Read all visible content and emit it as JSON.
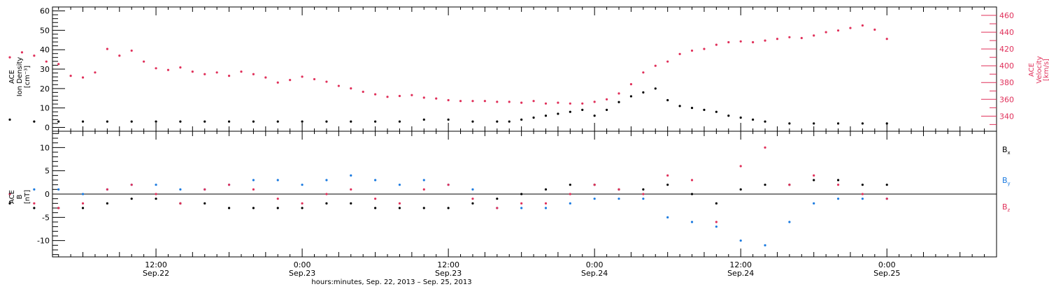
{
  "chart_data": [
    {
      "type": "scatter",
      "panel": "top",
      "y_label_lines": [
        "ACE",
        "Ion Density",
        "[cm⁻³]"
      ],
      "y_ticks": [
        0,
        10,
        20,
        30,
        40,
        50,
        60
      ],
      "ylim": [
        -2,
        62
      ],
      "y2_label_lines": [
        "ACE",
        "Velocity",
        "[km/s]"
      ],
      "y2_ticks": [
        340,
        360,
        380,
        400,
        420,
        440,
        460
      ],
      "y2lim": [
        322,
        470
      ],
      "grid": false,
      "series": [
        {
          "axis": "left",
          "color": "#000000",
          "x": [
            0,
            2,
            4,
            6,
            8,
            10,
            12,
            14,
            16,
            18,
            20,
            22,
            24,
            26,
            28,
            30,
            32,
            34,
            36,
            38,
            40,
            41,
            42,
            43,
            44,
            45,
            46,
            47,
            48,
            49,
            50,
            51,
            52,
            53,
            54,
            55,
            56,
            57,
            58,
            59,
            60,
            61,
            62,
            64,
            66,
            68,
            70,
            72
          ],
          "values": [
            4,
            3,
            3,
            3,
            3,
            3,
            3,
            3,
            3,
            3,
            3,
            3,
            3,
            3,
            3,
            3,
            3,
            4,
            4,
            3,
            3,
            3,
            4,
            5,
            6,
            7,
            8,
            9,
            6,
            9,
            13,
            16,
            18,
            20,
            14,
            11,
            10,
            9,
            8,
            6,
            5,
            4,
            3,
            2,
            2,
            2,
            2,
            2
          ]
        },
        {
          "axis": "right",
          "color": "#e0305a",
          "x": [
            0,
            1,
            2,
            3,
            4,
            5,
            6,
            7,
            8,
            9,
            10,
            11,
            12,
            13,
            14,
            15,
            16,
            17,
            18,
            19,
            20,
            21,
            22,
            23,
            24,
            25,
            26,
            27,
            28,
            29,
            30,
            31,
            32,
            33,
            34,
            35,
            36,
            37,
            38,
            39,
            40,
            41,
            42,
            43,
            44,
            45,
            46,
            47,
            48,
            49,
            50,
            51,
            52,
            53,
            54,
            55,
            56,
            57,
            58,
            59,
            60,
            61,
            62,
            63,
            64,
            65,
            66,
            67,
            68,
            69,
            70,
            71,
            72
          ],
          "values": [
            410,
            416,
            412,
            405,
            402,
            388,
            386,
            392,
            420,
            412,
            418,
            405,
            397,
            395,
            398,
            393,
            390,
            392,
            388,
            393,
            390,
            386,
            380,
            383,
            387,
            384,
            381,
            376,
            373,
            369,
            366,
            363,
            364,
            365,
            362,
            361,
            359,
            358,
            358,
            358,
            357,
            357,
            356,
            358,
            355,
            356,
            355,
            355,
            357,
            360,
            367,
            378,
            392,
            400,
            405,
            414,
            418,
            420,
            425,
            428,
            429,
            428,
            430,
            432,
            434,
            433,
            436,
            440,
            442,
            445,
            448,
            443,
            432
          ]
        }
      ]
    },
    {
      "type": "scatter",
      "panel": "bottom",
      "y_label_lines": [
        "ACE",
        "B",
        "[nT]"
      ],
      "y_ticks": [
        -10,
        -5,
        0,
        5,
        10
      ],
      "ylim": [
        -13.5,
        13.5
      ],
      "zero_line": true,
      "grid": false,
      "series": [
        {
          "name": "B",
          "subscript": "x",
          "color": "#000000",
          "x": [
            0,
            2,
            4,
            6,
            8,
            10,
            12,
            14,
            16,
            18,
            20,
            22,
            24,
            26,
            28,
            30,
            32,
            34,
            36,
            38,
            40,
            42,
            44,
            46,
            48,
            50,
            52,
            54,
            56,
            58,
            60,
            62,
            64,
            66,
            68,
            70,
            72
          ],
          "values": [
            -2,
            -3,
            -3,
            -3,
            -2,
            -1,
            -1,
            -2,
            -2,
            -3,
            -3,
            -3,
            -3,
            -2,
            -2,
            -3,
            -3,
            -3,
            -3,
            -2,
            -1,
            0,
            1,
            2,
            2,
            1,
            1,
            2,
            0,
            -2,
            1,
            2,
            2,
            3,
            3,
            2,
            2
          ]
        },
        {
          "name": "B",
          "subscript": "y",
          "color": "#1a7ae0",
          "x": [
            0,
            2,
            4,
            6,
            8,
            10,
            12,
            14,
            16,
            18,
            20,
            22,
            24,
            26,
            28,
            30,
            32,
            34,
            36,
            38,
            40,
            42,
            44,
            46,
            48,
            50,
            52,
            54,
            56,
            58,
            60,
            62,
            64,
            66,
            68,
            70,
            72
          ],
          "values": [
            0,
            1,
            1,
            0,
            1,
            2,
            2,
            1,
            1,
            2,
            3,
            3,
            2,
            3,
            4,
            3,
            2,
            3,
            2,
            1,
            -3,
            -3,
            -3,
            -2,
            -1,
            -1,
            -1,
            -5,
            -6,
            -7,
            -10,
            -11,
            -6,
            -2,
            -1,
            -1,
            -1
          ]
        },
        {
          "name": "B",
          "subscript": "z",
          "color": "#e0305a",
          "x": [
            0,
            2,
            4,
            6,
            8,
            10,
            12,
            14,
            16,
            18,
            20,
            22,
            24,
            26,
            28,
            30,
            32,
            34,
            36,
            38,
            40,
            42,
            44,
            46,
            48,
            50,
            52,
            54,
            56,
            58,
            60,
            62,
            64,
            66,
            68,
            70,
            72
          ],
          "values": [
            0,
            -2,
            -3,
            -2,
            1,
            2,
            0,
            -2,
            1,
            2,
            1,
            -1,
            -2,
            0,
            1,
            -1,
            -2,
            1,
            2,
            -1,
            -3,
            -2,
            -2,
            0,
            2,
            1,
            0,
            4,
            3,
            -6,
            6,
            10,
            2,
            4,
            2,
            0,
            -1
          ]
        }
      ]
    }
  ],
  "x_axis": {
    "xlim": [
      3.5,
      81
    ],
    "major_ticks": [
      {
        "x": 12,
        "time": "12:00",
        "date": "Sep.22"
      },
      {
        "x": 24,
        "time": "0:00",
        "date": "Sep.23"
      },
      {
        "x": 36,
        "time": "12:00",
        "date": "Sep.23"
      },
      {
        "x": 48,
        "time": "0:00",
        "date": "Sep.24"
      },
      {
        "x": 60,
        "time": "12:00",
        "date": "Sep.24"
      },
      {
        "x": 72,
        "time": "0:00",
        "date": "Sep.25"
      }
    ],
    "title": "hours:minutes, Sep. 22, 2013 – Sep. 25, 2013"
  }
}
